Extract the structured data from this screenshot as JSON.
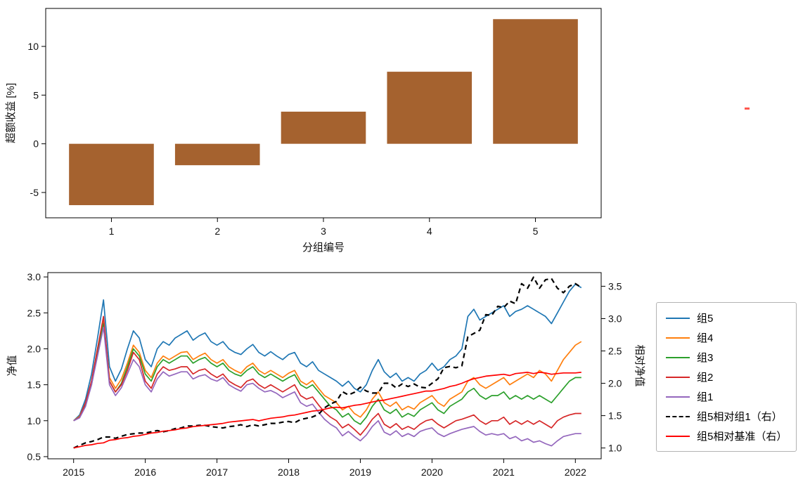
{
  "figure": {
    "background": "#ffffff"
  },
  "artifact": {
    "color": "#ff3b30"
  },
  "chart_data": [
    {
      "type": "bar",
      "title": "",
      "categories": [
        "1",
        "2",
        "3",
        "4",
        "5"
      ],
      "values": [
        -6.3,
        -2.2,
        3.3,
        7.4,
        12.8
      ],
      "xlabel": "分组编号",
      "ylabel": "超额收益 [%]",
      "ylim": [
        -7.6,
        13.9
      ],
      "yticks": [
        -5,
        0,
        5,
        10
      ],
      "bar_color": "#A5622F",
      "grid": false,
      "legend_position": "none"
    },
    {
      "type": "line",
      "title": "",
      "xlabel": "",
      "ylabel_left": "净值",
      "ylabel_right": "相对净值",
      "xlim": [
        2014.64,
        2022.36
      ],
      "ylim_left": [
        0.47,
        3.06
      ],
      "ylim_right": [
        0.833,
        3.711
      ],
      "yticks_left": [
        0.5,
        1.0,
        1.5,
        2.0,
        2.5,
        3.0
      ],
      "yticks_right": [
        1.0,
        1.5,
        2.0,
        2.5,
        3.0,
        3.5
      ],
      "xticks": [
        2015,
        2016,
        2017,
        2018,
        2019,
        2020,
        2021,
        2022
      ],
      "x_start": 2015.0,
      "x_step": 0.083333,
      "grid": false,
      "legend_position": "right",
      "series": [
        {
          "name": "组5",
          "color": "#1f77b4",
          "style": "solid",
          "axis": "left",
          "values": [
            1.0,
            1.08,
            1.3,
            1.65,
            2.15,
            2.68,
            1.75,
            1.55,
            1.72,
            2.0,
            2.25,
            2.15,
            1.85,
            1.75,
            2.0,
            2.1,
            2.05,
            2.15,
            2.2,
            2.25,
            2.12,
            2.18,
            2.22,
            2.1,
            2.05,
            2.1,
            2.0,
            1.95,
            1.92,
            2.0,
            2.06,
            1.95,
            1.9,
            1.96,
            1.9,
            1.85,
            1.92,
            1.95,
            1.8,
            1.75,
            1.82,
            1.7,
            1.65,
            1.6,
            1.55,
            1.48,
            1.55,
            1.45,
            1.4,
            1.5,
            1.7,
            1.85,
            1.68,
            1.6,
            1.66,
            1.55,
            1.6,
            1.55,
            1.65,
            1.7,
            1.8,
            1.7,
            1.75,
            1.85,
            1.9,
            2.0,
            2.45,
            2.55,
            2.4,
            2.45,
            2.5,
            2.55,
            2.6,
            2.45,
            2.52,
            2.55,
            2.6,
            2.55,
            2.5,
            2.45,
            2.35,
            2.5,
            2.65,
            2.8,
            2.9,
            2.85
          ]
        },
        {
          "name": "组4",
          "color": "#ff7f0e",
          "style": "solid",
          "axis": "left",
          "values": [
            1.0,
            1.06,
            1.25,
            1.55,
            2.0,
            2.4,
            1.6,
            1.45,
            1.58,
            1.8,
            2.05,
            1.95,
            1.7,
            1.6,
            1.8,
            1.9,
            1.85,
            1.9,
            1.95,
            1.96,
            1.85,
            1.9,
            1.94,
            1.85,
            1.8,
            1.85,
            1.75,
            1.7,
            1.66,
            1.75,
            1.8,
            1.7,
            1.65,
            1.7,
            1.65,
            1.6,
            1.66,
            1.7,
            1.55,
            1.5,
            1.56,
            1.45,
            1.35,
            1.3,
            1.25,
            1.15,
            1.2,
            1.1,
            1.05,
            1.15,
            1.3,
            1.4,
            1.25,
            1.2,
            1.26,
            1.15,
            1.2,
            1.16,
            1.25,
            1.3,
            1.35,
            1.25,
            1.2,
            1.3,
            1.35,
            1.4,
            1.55,
            1.6,
            1.5,
            1.45,
            1.5,
            1.55,
            1.6,
            1.5,
            1.55,
            1.6,
            1.65,
            1.6,
            1.7,
            1.65,
            1.55,
            1.7,
            1.85,
            1.95,
            2.05,
            2.1
          ]
        },
        {
          "name": "组3",
          "color": "#2ca02c",
          "style": "solid",
          "axis": "left",
          "values": [
            1.0,
            1.05,
            1.22,
            1.5,
            1.95,
            2.35,
            1.55,
            1.4,
            1.52,
            1.75,
            2.0,
            1.9,
            1.65,
            1.55,
            1.75,
            1.85,
            1.8,
            1.85,
            1.9,
            1.9,
            1.8,
            1.85,
            1.88,
            1.8,
            1.75,
            1.8,
            1.7,
            1.65,
            1.62,
            1.7,
            1.75,
            1.65,
            1.6,
            1.65,
            1.6,
            1.55,
            1.6,
            1.64,
            1.5,
            1.45,
            1.5,
            1.4,
            1.3,
            1.2,
            1.15,
            1.05,
            1.1,
            1.0,
            0.95,
            1.05,
            1.2,
            1.3,
            1.15,
            1.1,
            1.16,
            1.05,
            1.1,
            1.06,
            1.15,
            1.2,
            1.25,
            1.15,
            1.1,
            1.2,
            1.25,
            1.3,
            1.4,
            1.45,
            1.35,
            1.3,
            1.35,
            1.35,
            1.4,
            1.3,
            1.35,
            1.3,
            1.35,
            1.3,
            1.35,
            1.3,
            1.25,
            1.35,
            1.45,
            1.55,
            1.6,
            1.6
          ]
        },
        {
          "name": "组2",
          "color": "#d62728",
          "style": "solid",
          "axis": "left",
          "values": [
            1.0,
            1.05,
            1.25,
            1.55,
            2.0,
            2.45,
            1.55,
            1.4,
            1.5,
            1.7,
            1.95,
            1.85,
            1.55,
            1.45,
            1.65,
            1.75,
            1.7,
            1.72,
            1.75,
            1.75,
            1.65,
            1.7,
            1.72,
            1.65,
            1.6,
            1.65,
            1.55,
            1.5,
            1.46,
            1.55,
            1.58,
            1.5,
            1.45,
            1.5,
            1.45,
            1.4,
            1.45,
            1.5,
            1.35,
            1.3,
            1.33,
            1.22,
            1.12,
            1.05,
            1.0,
            0.9,
            0.95,
            0.88,
            0.8,
            0.9,
            1.02,
            1.1,
            0.95,
            0.9,
            0.96,
            0.88,
            0.92,
            0.88,
            0.95,
            1.0,
            1.02,
            0.95,
            0.9,
            0.95,
            1.0,
            1.02,
            1.05,
            1.08,
            1.0,
            0.95,
            1.0,
            1.0,
            1.05,
            0.95,
            1.0,
            0.95,
            1.0,
            0.95,
            1.0,
            0.95,
            0.9,
            1.0,
            1.05,
            1.08,
            1.1,
            1.1
          ]
        },
        {
          "name": "组1",
          "color": "#9467bd",
          "style": "solid",
          "axis": "left",
          "values": [
            1.0,
            1.04,
            1.2,
            1.5,
            1.9,
            2.3,
            1.5,
            1.35,
            1.46,
            1.65,
            1.85,
            1.75,
            1.5,
            1.4,
            1.58,
            1.68,
            1.62,
            1.65,
            1.68,
            1.68,
            1.58,
            1.62,
            1.64,
            1.58,
            1.55,
            1.6,
            1.5,
            1.45,
            1.41,
            1.5,
            1.52,
            1.45,
            1.4,
            1.42,
            1.38,
            1.32,
            1.36,
            1.4,
            1.25,
            1.2,
            1.23,
            1.12,
            1.02,
            0.95,
            0.9,
            0.79,
            0.85,
            0.78,
            0.72,
            0.8,
            0.92,
            1.0,
            0.84,
            0.8,
            0.86,
            0.78,
            0.82,
            0.78,
            0.85,
            0.88,
            0.9,
            0.82,
            0.78,
            0.82,
            0.85,
            0.88,
            0.9,
            0.92,
            0.85,
            0.8,
            0.82,
            0.8,
            0.82,
            0.75,
            0.78,
            0.72,
            0.75,
            0.7,
            0.72,
            0.68,
            0.65,
            0.72,
            0.78,
            0.8,
            0.82,
            0.82
          ]
        },
        {
          "name": "组5相对组1（右）",
          "color": "#000000",
          "style": "dashed",
          "axis": "right",
          "values": [
            1.0,
            1.04,
            1.08,
            1.1,
            1.13,
            1.17,
            1.17,
            1.15,
            1.18,
            1.21,
            1.22,
            1.23,
            1.23,
            1.25,
            1.27,
            1.25,
            1.27,
            1.3,
            1.31,
            1.34,
            1.34,
            1.35,
            1.35,
            1.33,
            1.32,
            1.31,
            1.33,
            1.34,
            1.36,
            1.33,
            1.36,
            1.34,
            1.36,
            1.38,
            1.38,
            1.4,
            1.41,
            1.39,
            1.44,
            1.46,
            1.48,
            1.52,
            1.62,
            1.68,
            1.72,
            1.87,
            1.82,
            1.86,
            1.94,
            1.88,
            1.85,
            1.85,
            2.0,
            2.0,
            1.93,
            1.99,
            1.95,
            1.99,
            1.94,
            1.93,
            2.0,
            2.07,
            2.24,
            2.26,
            2.24,
            2.27,
            2.72,
            2.77,
            2.82,
            3.06,
            3.05,
            3.19,
            3.17,
            3.27,
            3.23,
            3.54,
            3.47,
            3.64,
            3.47,
            3.6,
            3.62,
            3.47,
            3.4,
            3.5,
            3.54,
            3.48
          ]
        },
        {
          "name": "组5相对基准（右）",
          "color": "#ff0000",
          "style": "solid",
          "axis": "right",
          "values": [
            1.0,
            1.02,
            1.04,
            1.05,
            1.07,
            1.08,
            1.12,
            1.13,
            1.15,
            1.16,
            1.18,
            1.19,
            1.21,
            1.23,
            1.24,
            1.26,
            1.27,
            1.28,
            1.3,
            1.31,
            1.33,
            1.34,
            1.35,
            1.36,
            1.37,
            1.38,
            1.4,
            1.41,
            1.42,
            1.43,
            1.44,
            1.42,
            1.44,
            1.46,
            1.47,
            1.48,
            1.5,
            1.51,
            1.53,
            1.55,
            1.57,
            1.58,
            1.6,
            1.62,
            1.63,
            1.62,
            1.64,
            1.66,
            1.67,
            1.69,
            1.71,
            1.73,
            1.74,
            1.76,
            1.78,
            1.8,
            1.82,
            1.84,
            1.86,
            1.88,
            1.88,
            1.9,
            1.92,
            1.95,
            1.97,
            2.0,
            2.04,
            2.07,
            2.09,
            2.11,
            2.12,
            2.13,
            2.14,
            2.12,
            2.15,
            2.16,
            2.17,
            2.15,
            2.17,
            2.16,
            2.14,
            2.15,
            2.16,
            2.16,
            2.16,
            2.17
          ]
        }
      ]
    }
  ]
}
